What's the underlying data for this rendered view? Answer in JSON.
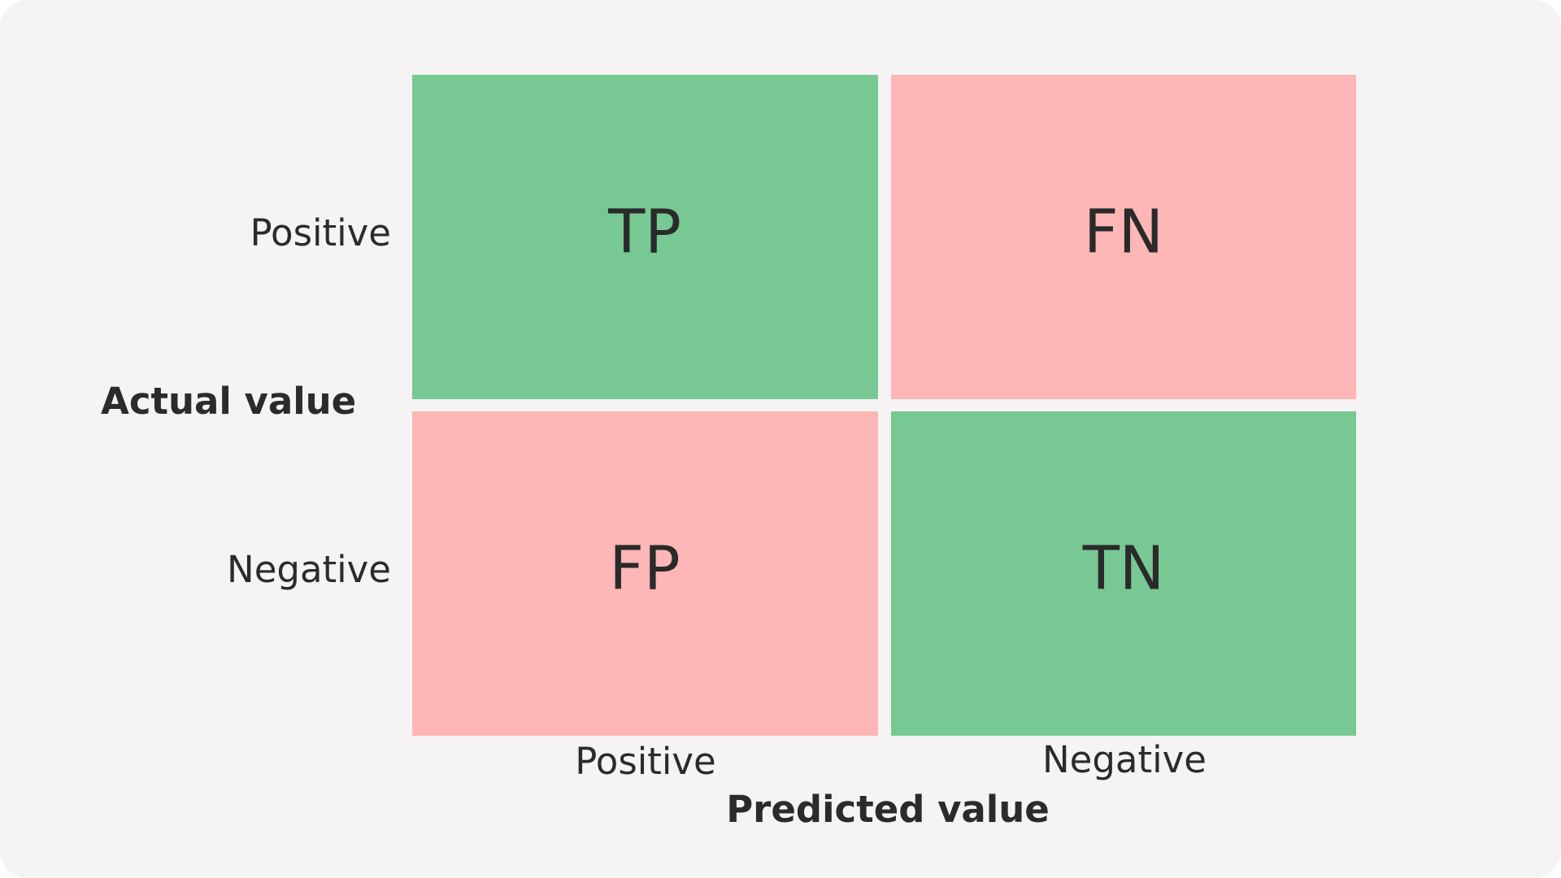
{
  "axes": {
    "actual": "Actual value",
    "predicted": "Predicted value"
  },
  "rows": [
    "Positive",
    "Negative"
  ],
  "columns": [
    "Positive",
    "Negative"
  ],
  "cells": [
    [
      "TP",
      "FN"
    ],
    [
      "FP",
      "TN"
    ]
  ]
}
